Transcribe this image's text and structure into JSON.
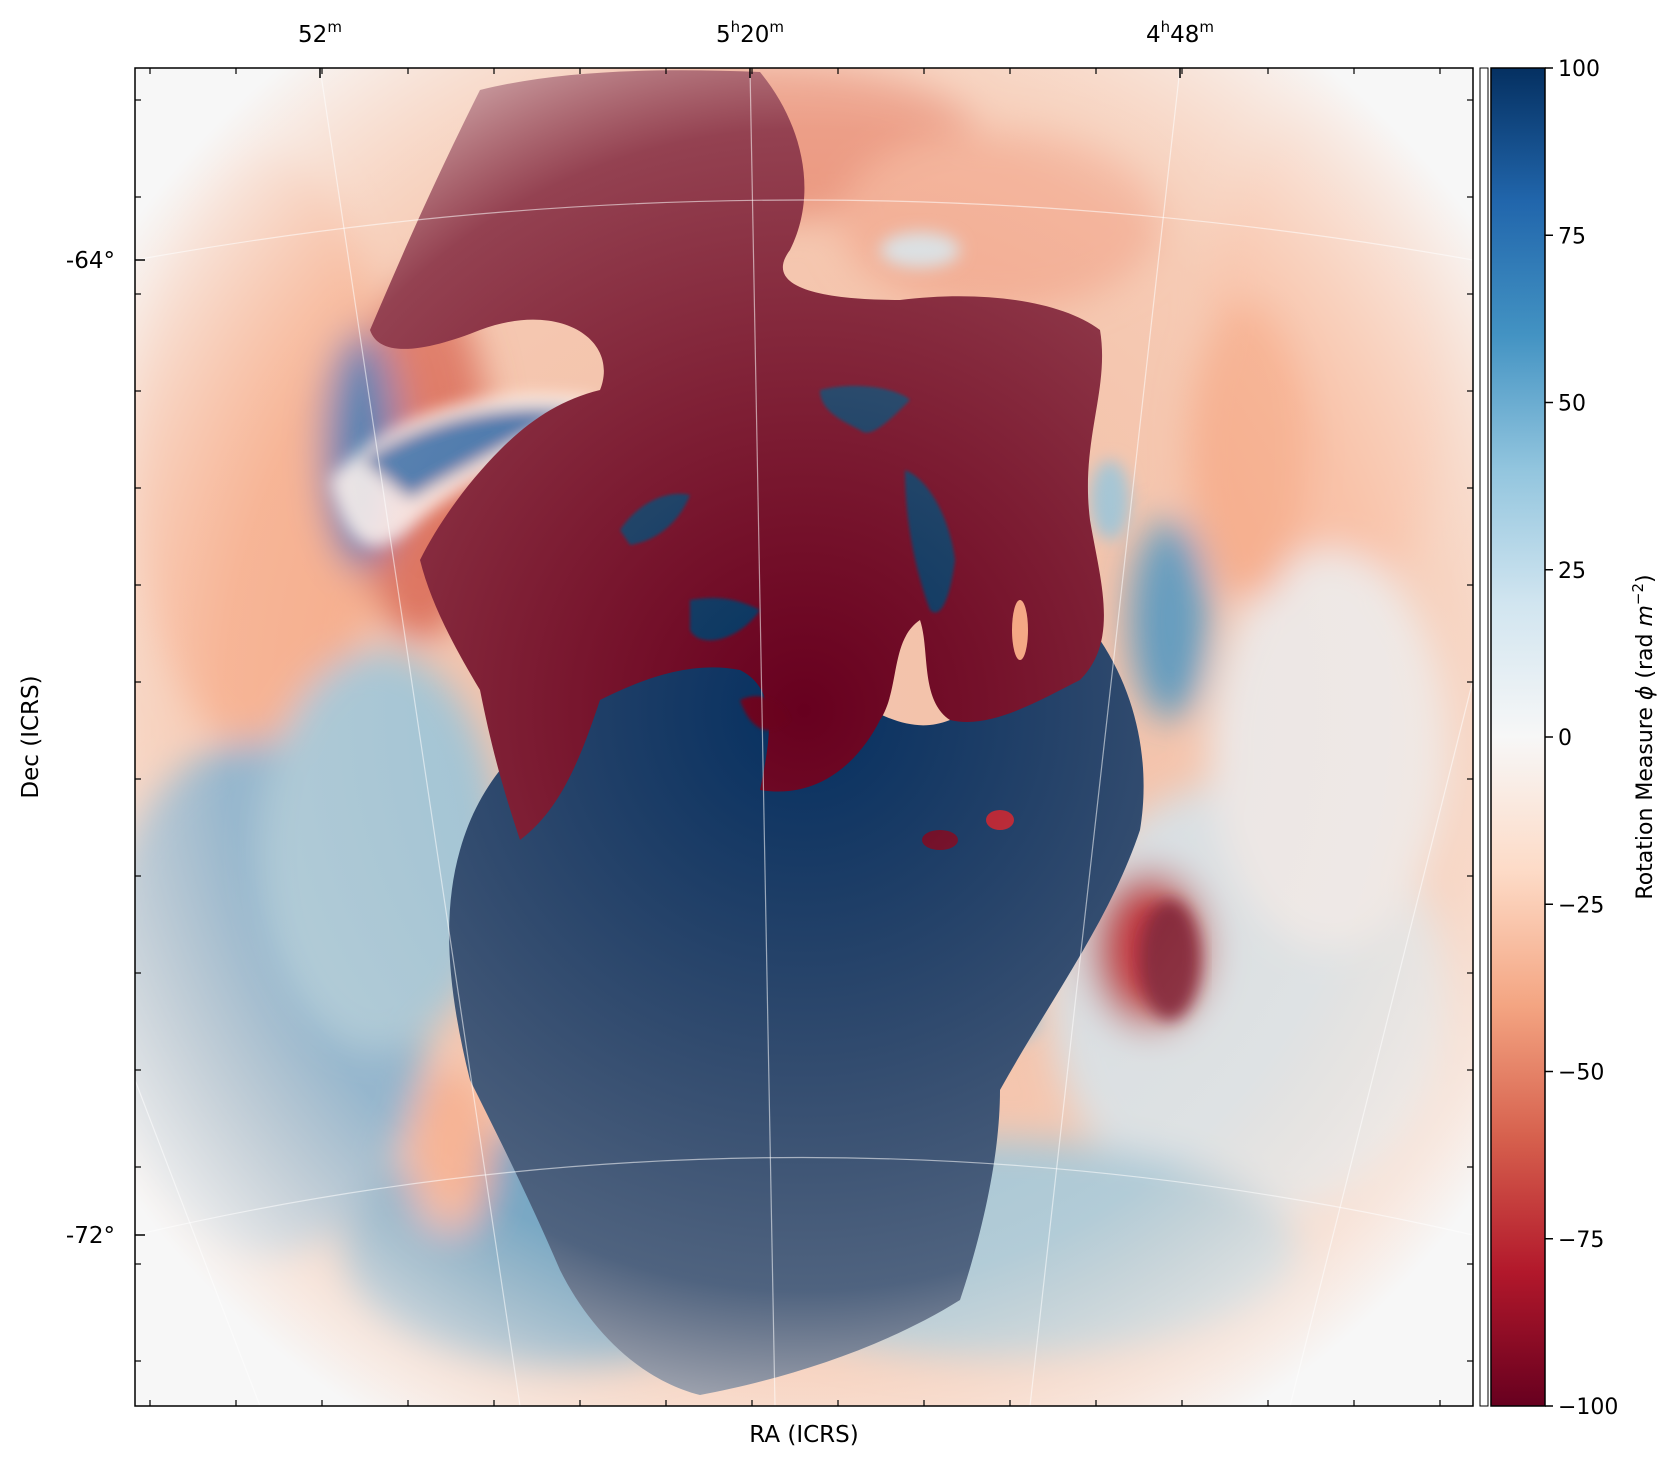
{
  "chart_data": {
    "type": "heatmap",
    "title": "",
    "xlabel": "RA (ICRS)",
    "ylabel": "Dec (ICRS)",
    "x_ticks": [
      {
        "label": "52",
        "sup": "m"
      },
      {
        "label": "5",
        "sup": "h",
        "label2": "20",
        "sup2": "m"
      },
      {
        "label": "4",
        "sup": "h",
        "label2": "48",
        "sup2": "m"
      }
    ],
    "y_ticks": [
      "-64°",
      "-72°"
    ],
    "grid": true,
    "colormap": "RdBu",
    "colorbar": {
      "label": "Rotation Measure ϕ (rad m⁻²)",
      "label_main": "Rotation Measure ",
      "label_sym": "ϕ",
      "label_unit": " (rad ",
      "label_unit_m": "m",
      "label_unit_exp": "−2",
      "label_close": ")",
      "vmin": -100,
      "vmax": 100,
      "ticks": [
        100,
        75,
        50,
        25,
        0,
        -25,
        -50,
        -75,
        -100
      ],
      "tick_labels": [
        "100",
        "75",
        "50",
        "25",
        "0",
        "−25",
        "−50",
        "−75",
        "−100"
      ],
      "colors": [
        "#67001f",
        "#b2182b",
        "#d6604d",
        "#f4a582",
        "#fddbc7",
        "#f7f7f7",
        "#d1e5f0",
        "#92c5de",
        "#4393c3",
        "#2166ac",
        "#053061"
      ]
    },
    "regions": [
      {
        "name": "central negative RM (north)",
        "value": -100
      },
      {
        "name": "central positive RM (south)",
        "value": 100
      },
      {
        "name": "outer halo",
        "value": 0
      }
    ]
  }
}
